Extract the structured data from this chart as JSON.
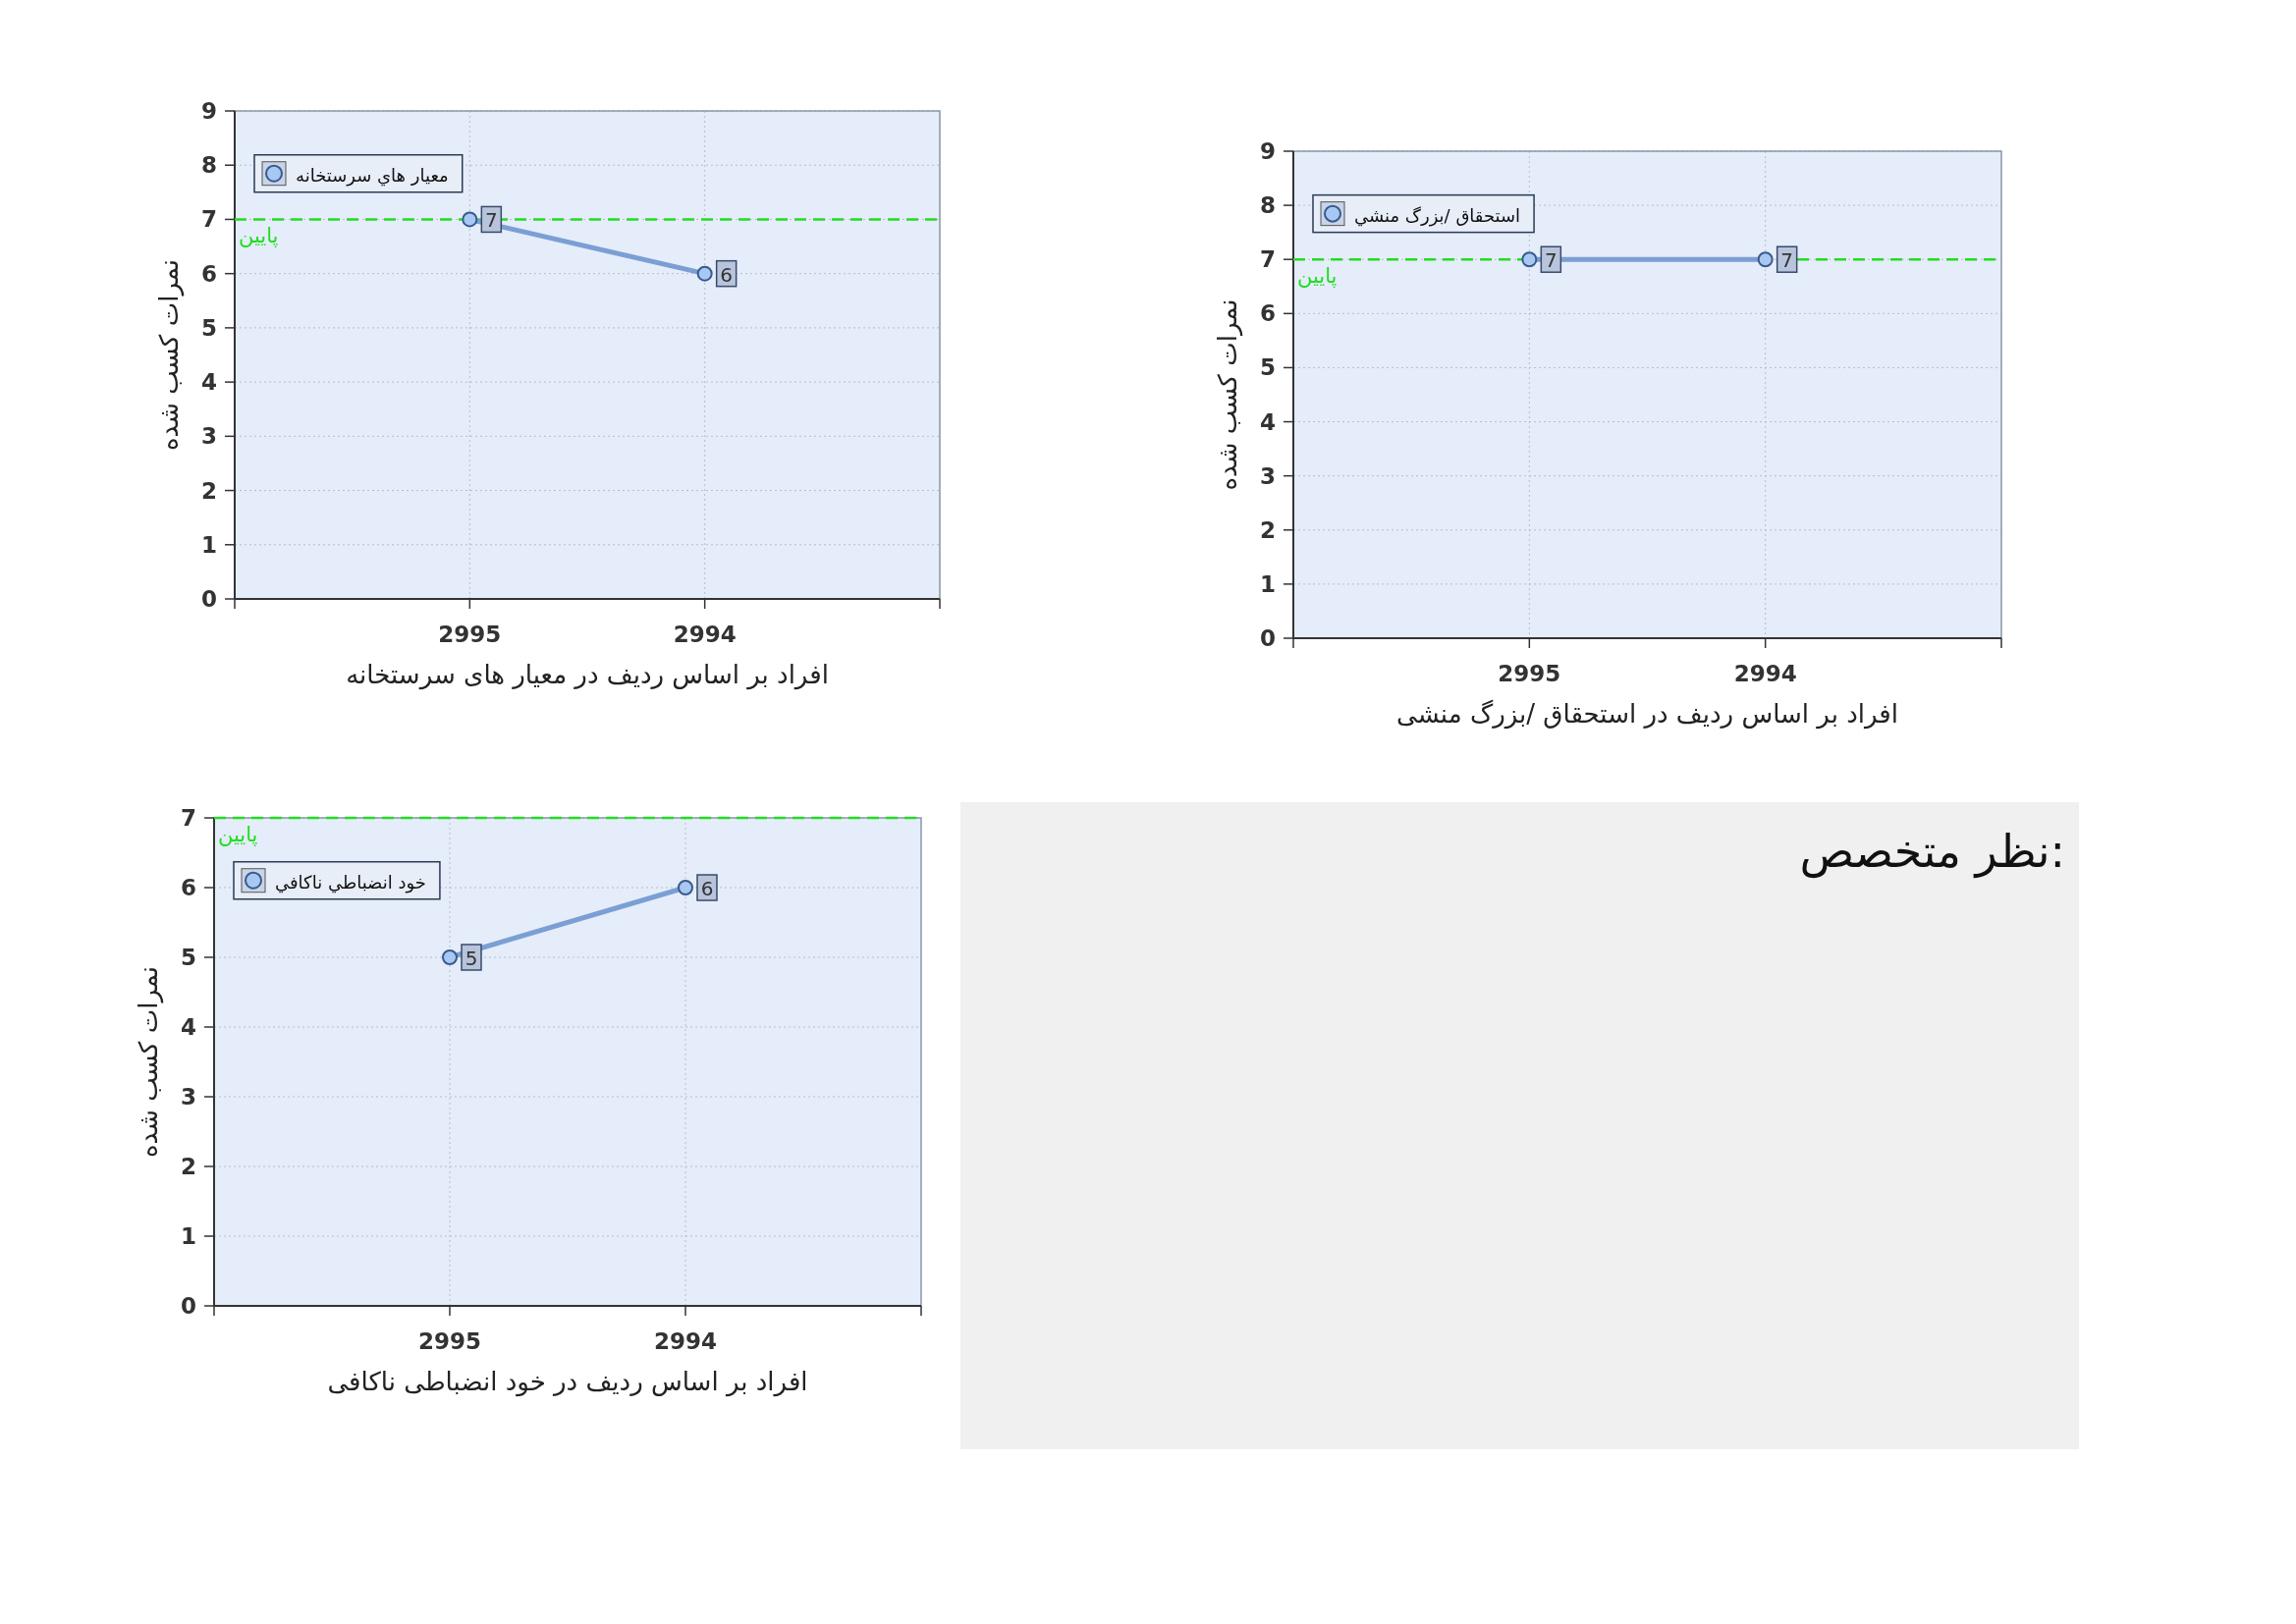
{
  "chart_data": [
    {
      "type": "line",
      "xlabel": "افراد بر اساس ردیف در معیار های سرستخانه",
      "ylabel": "نمرات کسب شده",
      "categories": [
        "2995",
        "2994"
      ],
      "series": [
        {
          "name": "معيار هاي سرستخانه",
          "color": "#7b9fd4",
          "values": [
            7,
            6
          ]
        }
      ],
      "ylim": [
        0,
        9
      ],
      "yticks": [
        0,
        1,
        2,
        3,
        4,
        5,
        6,
        7,
        8,
        9
      ],
      "grid": true,
      "legend": "top left",
      "marker": "circle",
      "line_style": "solid",
      "data_labels": true,
      "ref_lines": [
        {
          "axis": "y",
          "value": 7,
          "label": "پایین",
          "color": "#22dd22",
          "line_style": "dashed"
        }
      ]
    },
    {
      "type": "line",
      "xlabel": "افراد بر اساس ردیف در استحقاق /بزرگ منشی",
      "ylabel": "نمرات کسب شده",
      "categories": [
        "2995",
        "2994"
      ],
      "series": [
        {
          "name": "استحقاق /بزرگ منشي",
          "color": "#7b9fd4",
          "values": [
            7,
            7
          ]
        }
      ],
      "ylim": [
        0,
        9
      ],
      "yticks": [
        0,
        1,
        2,
        3,
        4,
        5,
        6,
        7,
        8,
        9
      ],
      "grid": true,
      "legend": "top left",
      "marker": "circle",
      "line_style": "solid",
      "data_labels": true,
      "ref_lines": [
        {
          "axis": "y",
          "value": 7,
          "label": "پایین",
          "color": "#22dd22",
          "line_style": "dashed"
        }
      ]
    },
    {
      "type": "line",
      "xlabel": "افراد بر اساس ردیف در خود انضباطی ناکافی",
      "ylabel": "نمرات کسب شده",
      "categories": [
        "2995",
        "2994"
      ],
      "series": [
        {
          "name": "خود انضباطي ناكافي",
          "color": "#7b9fd4",
          "values": [
            5,
            6
          ]
        }
      ],
      "ylim": [
        0,
        7
      ],
      "yticks": [
        0,
        1,
        2,
        3,
        4,
        5,
        6,
        7
      ],
      "grid": true,
      "legend": "top left",
      "marker": "circle",
      "line_style": "solid",
      "data_labels": true,
      "ref_lines": [
        {
          "axis": "y",
          "value": 7,
          "label": "پایین",
          "color": "#22dd22",
          "line_style": "dashed"
        }
      ]
    },
    {
      "type": "other",
      "title": "نظر متخصص:"
    }
  ]
}
